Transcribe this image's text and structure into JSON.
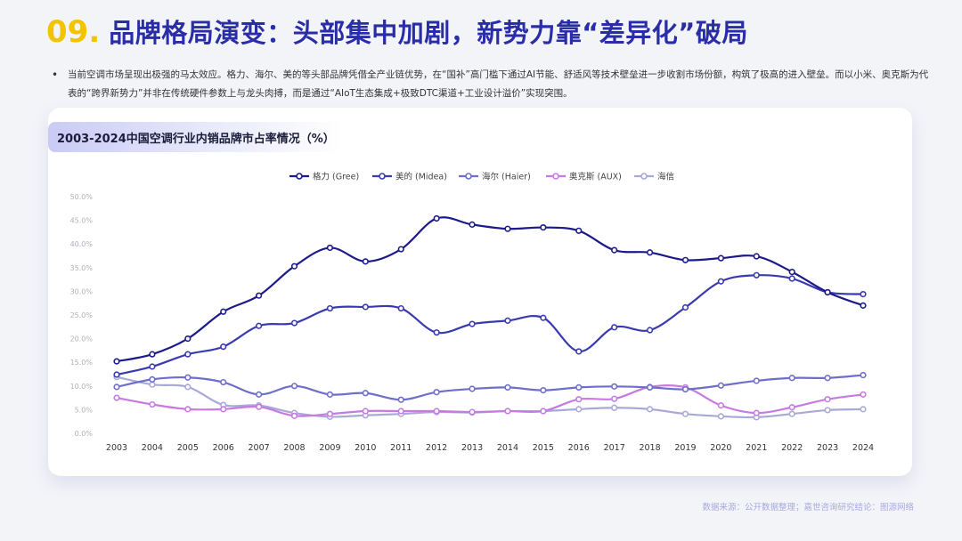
{
  "header": {
    "number": "09.",
    "title": "品牌格局演变：头部集中加剧，新势力靠“差异化”破局"
  },
  "intro": {
    "bullet": "•",
    "text": "当前空调市场呈现出极强的马太效应。格力、海尔、美的等头部品牌凭借全产业链优势，在“国补”高门槛下通过AI节能、舒适风等技术壁垒进一步收割市场份额，构筑了极高的进入壁垒。而以小米、奥克斯为代表的“跨界新势力”并非在传统硬件参数上与龙头肉搏，而是通过“AIoT生态集成+极致DTC渠道+工业设计溢价”实现突围。"
  },
  "source": "数据来源：公开数据整理；嘉世咨询研究结论：图源网络",
  "chart_data": {
    "type": "line",
    "title": "2003-2024中国空调行业内销品牌市占率情况（%）",
    "xlabel": "",
    "ylabel": "",
    "ylim": [
      0,
      50
    ],
    "yticks": [
      "0.0%",
      "5.0%",
      "10.0%",
      "15.0%",
      "20.0%",
      "25.0%",
      "30.0%",
      "35.0%",
      "40.0%",
      "45.0%",
      "50.0%"
    ],
    "categories": [
      "2003",
      "2004",
      "2005",
      "2006",
      "2007",
      "2008",
      "2009",
      "2010",
      "2011",
      "2012",
      "2013",
      "2014",
      "2015",
      "2016",
      "2017",
      "2018",
      "2019",
      "2020",
      "2021",
      "2022",
      "2023",
      "2024"
    ],
    "grid": false,
    "legend": "top-center",
    "series": [
      {
        "name": "格力 (Gree)",
        "color": "#1c1a8a",
        "values": [
          15.2,
          16.7,
          20.0,
          25.7,
          29.1,
          35.3,
          39.2,
          36.3,
          38.9,
          45.4,
          44.1,
          43.2,
          43.5,
          42.8,
          38.7,
          38.2,
          36.6,
          37.0,
          37.4,
          34.1,
          29.8,
          27.0
        ]
      },
      {
        "name": "美的 (Midea)",
        "color": "#3a3ab0",
        "values": [
          12.4,
          14.1,
          16.7,
          18.3,
          22.7,
          23.3,
          26.4,
          26.7,
          26.4,
          21.3,
          23.1,
          23.8,
          24.4,
          17.3,
          22.4,
          21.8,
          26.6,
          32.1,
          33.4,
          32.7,
          29.8,
          29.4
        ]
      },
      {
        "name": "海尔 (Haier)",
        "color": "#6e6ecb",
        "values": [
          9.8,
          11.4,
          11.8,
          10.8,
          8.2,
          10.0,
          8.2,
          8.5,
          7.1,
          8.7,
          9.4,
          9.7,
          9.1,
          9.7,
          9.9,
          9.7,
          9.3,
          10.1,
          11.1,
          11.7,
          11.7,
          12.3
        ]
      },
      {
        "name": "奥克斯 (AUX)",
        "color": "#c77ae0",
        "values": [
          7.5,
          6.1,
          5.1,
          5.1,
          5.6,
          3.7,
          4.1,
          4.7,
          4.7,
          4.7,
          4.5,
          4.7,
          4.7,
          7.2,
          7.3,
          9.8,
          9.7,
          5.9,
          4.3,
          5.5,
          7.2,
          8.2
        ]
      },
      {
        "name": "海信",
        "color": "#a9a9d8",
        "values": [
          11.9,
          10.3,
          9.8,
          6.0,
          5.9,
          4.3,
          3.5,
          3.8,
          4.1,
          4.5,
          4.4,
          4.7,
          4.7,
          5.1,
          5.4,
          5.1,
          4.1,
          3.6,
          3.4,
          4.1,
          4.9,
          5.1
        ]
      }
    ]
  }
}
